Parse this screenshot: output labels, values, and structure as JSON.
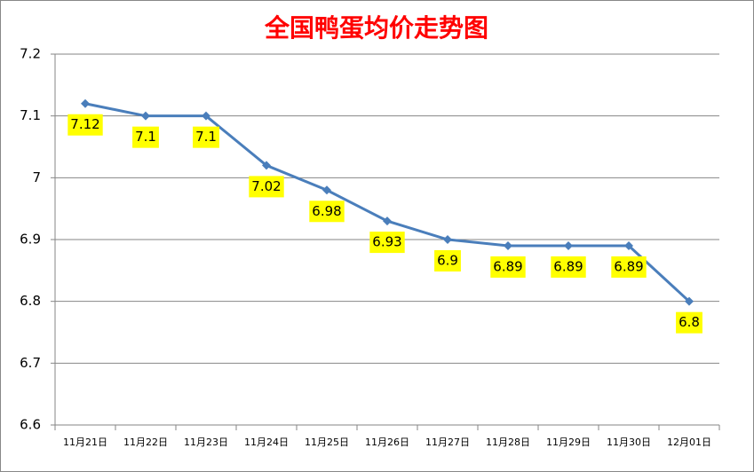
{
  "chart_data": {
    "type": "line",
    "title": "全国鸭蛋均价走势图",
    "categories": [
      "11月21日",
      "11月22日",
      "11月23日",
      "11月24日",
      "11月25日",
      "11月26日",
      "11月27日",
      "11月28日",
      "11月29日",
      "11月30日",
      "12月01日"
    ],
    "values": [
      7.12,
      7.1,
      7.1,
      7.02,
      6.98,
      6.93,
      6.9,
      6.89,
      6.89,
      6.89,
      6.8
    ],
    "color": "#4a7ebb",
    "label_color": "#ffff00",
    "title_color": "#ff0000",
    "ylim": [
      6.6,
      7.2
    ],
    "yticks": [
      6.6,
      6.7,
      6.8,
      6.9,
      7,
      7.1,
      7.2
    ],
    "grid": true
  }
}
